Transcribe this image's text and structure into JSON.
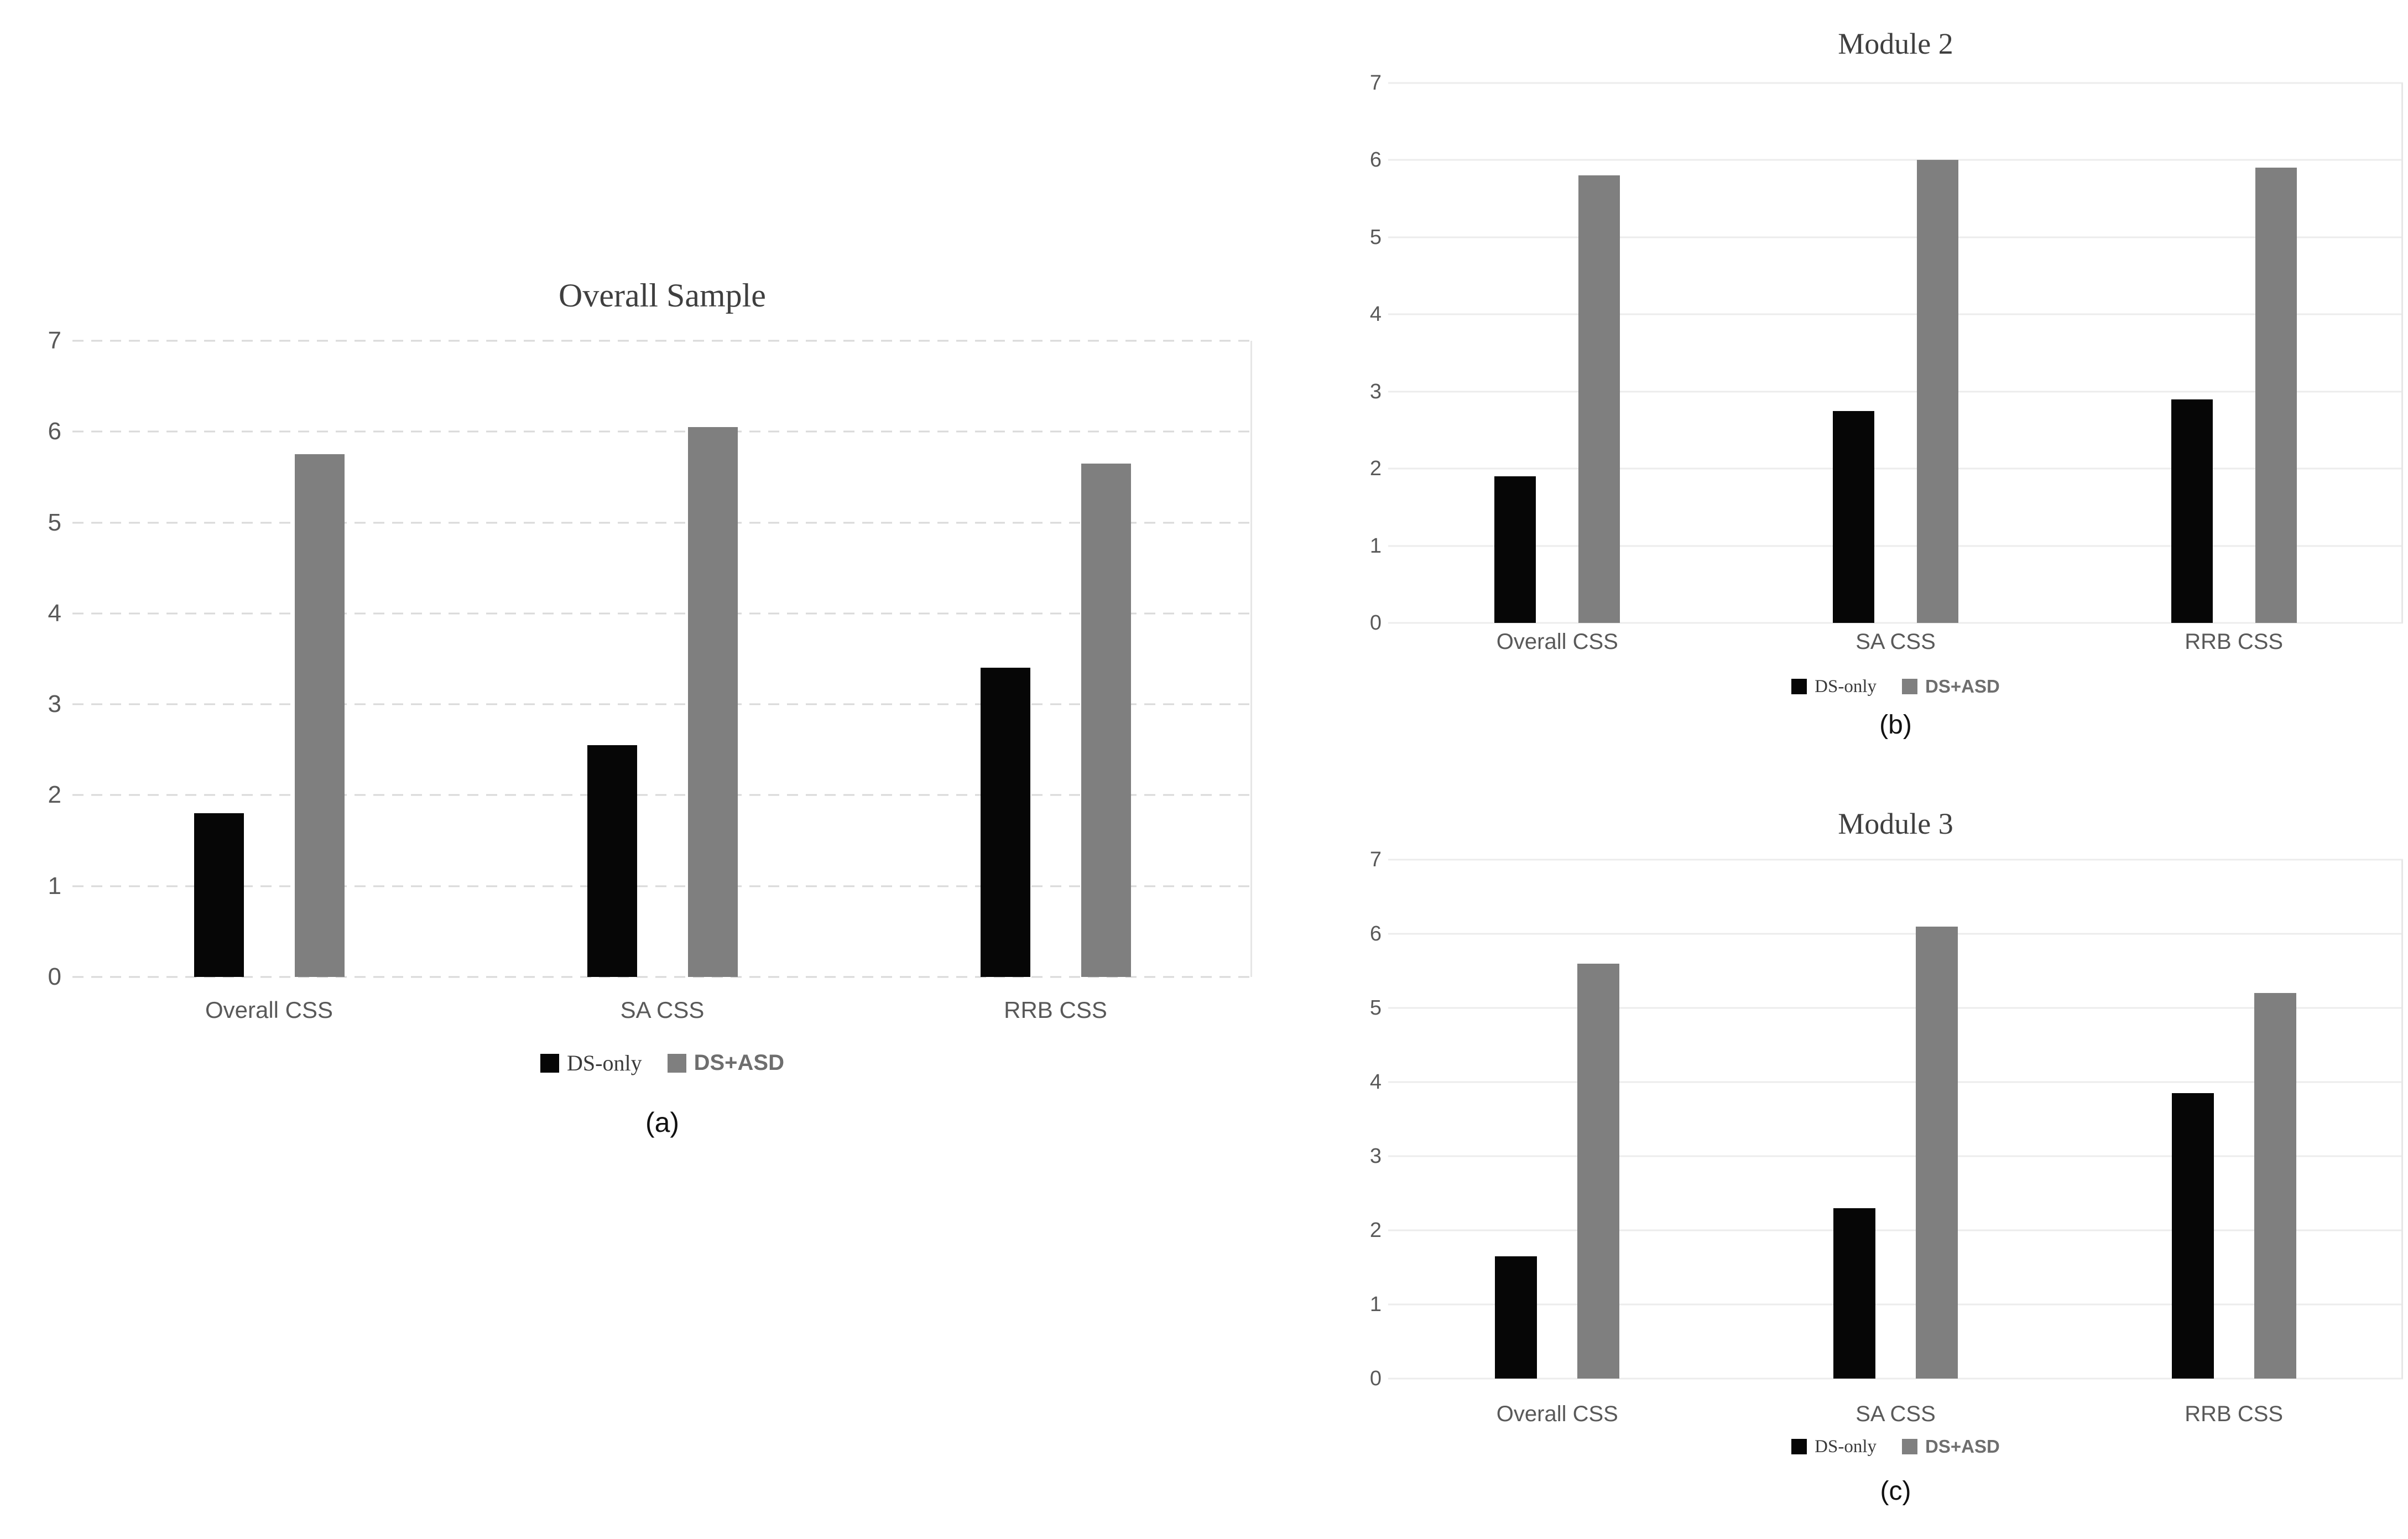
{
  "figure": {
    "series_labels": [
      "DS-only",
      "DS+ASD"
    ],
    "colors": {
      "ds_only": "#060606",
      "ds_asd": "#7f7f7f"
    }
  },
  "chart_data": [
    {
      "id": "overall-sample",
      "type": "bar",
      "title": "Overall Sample",
      "caption": "(a)",
      "categories": [
        "Overall CSS",
        "SA CSS",
        "RRB CSS"
      ],
      "series": [
        {
          "name": "DS-only",
          "color": "#060606",
          "values": [
            1.8,
            2.55,
            3.4
          ]
        },
        {
          "name": "DS+ASD",
          "color": "#7f7f7f",
          "values": [
            5.75,
            6.05,
            5.65
          ]
        }
      ],
      "xlabel": "",
      "ylabel": "",
      "ylim": [
        0,
        7
      ],
      "yticks": [
        0,
        1,
        2,
        3,
        4,
        5,
        6,
        7
      ],
      "grid": "dashed",
      "legend_position": "bottom"
    },
    {
      "id": "module-2",
      "type": "bar",
      "title": "Module 2",
      "caption": "(b)",
      "categories": [
        "Overall CSS",
        "SA CSS",
        "RRB CSS"
      ],
      "series": [
        {
          "name": "DS-only",
          "color": "#060606",
          "values": [
            1.9,
            2.75,
            2.9
          ]
        },
        {
          "name": "DS+ASD",
          "color": "#7f7f7f",
          "values": [
            5.8,
            6.0,
            5.9
          ]
        }
      ],
      "xlabel": "",
      "ylabel": "",
      "ylim": [
        0,
        7
      ],
      "yticks": [
        0,
        1,
        2,
        3,
        4,
        5,
        6,
        7
      ],
      "grid": "solid",
      "legend_position": "bottom"
    },
    {
      "id": "module-3",
      "type": "bar",
      "title": "Module 3",
      "caption": "(c)",
      "categories": [
        "Overall CSS",
        "SA CSS",
        "RRB CSS"
      ],
      "series": [
        {
          "name": "DS-only",
          "color": "#060606",
          "values": [
            1.65,
            2.3,
            3.85
          ]
        },
        {
          "name": "DS+ASD",
          "color": "#7f7f7f",
          "values": [
            5.6,
            6.1,
            5.2
          ]
        }
      ],
      "xlabel": "",
      "ylabel": "",
      "ylim": [
        0,
        7
      ],
      "yticks": [
        0,
        1,
        2,
        3,
        4,
        5,
        6,
        7
      ],
      "grid": "solid",
      "legend_position": "bottom"
    }
  ]
}
